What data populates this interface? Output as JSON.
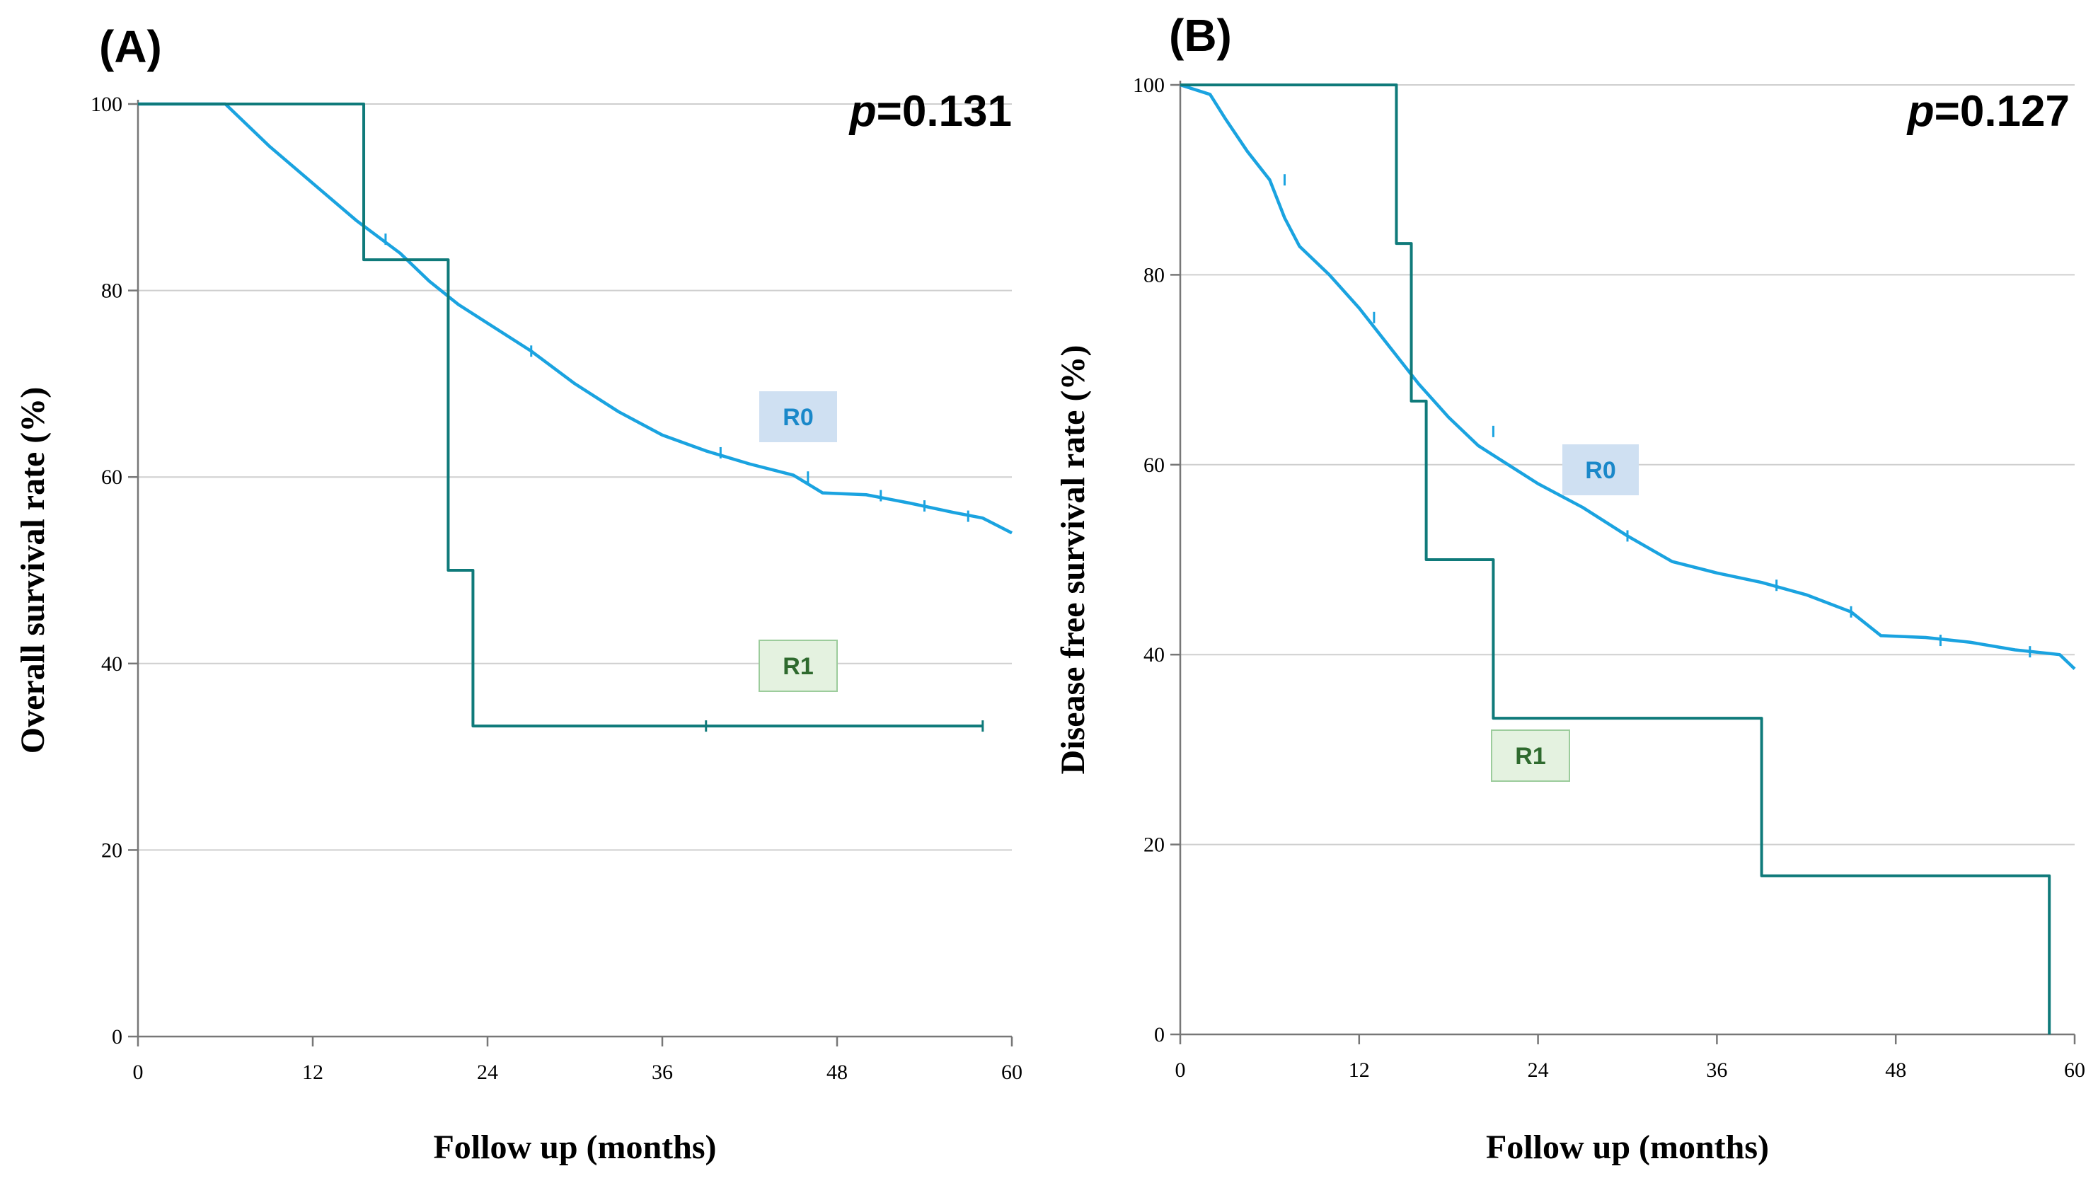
{
  "chart_data": [
    {
      "type": "line",
      "panel_label": "(A)",
      "p_prefix": "p",
      "p_value": "=0.131",
      "xlabel": "Follow up (months)",
      "ylabel": "Overall survival rate (%)",
      "xlim": [
        0,
        60
      ],
      "ylim": [
        0,
        100
      ],
      "x_ticks": [
        "0",
        "12",
        "24",
        "36",
        "48",
        "60"
      ],
      "y_ticks": [
        "0",
        "20",
        "40",
        "60",
        "80",
        "100"
      ],
      "grid": true,
      "series": [
        {
          "name": "R0",
          "color": "#1aa3e0",
          "label_bg": "#cfe0f2",
          "label_fg": "#1a88c9",
          "step": false,
          "x": [
            0,
            6,
            7,
            9,
            12,
            15,
            18,
            20,
            22,
            24,
            27,
            30,
            33,
            36,
            39,
            42,
            45,
            47,
            50,
            53,
            56,
            58,
            60
          ],
          "y": [
            100,
            100,
            98.5,
            95.5,
            91.5,
            87.5,
            84,
            81,
            78.5,
            76.5,
            73.5,
            70,
            67,
            64.5,
            62.8,
            61.4,
            60.2,
            58.3,
            58.1,
            57.2,
            56.2,
            55.6,
            54
          ],
          "censor_x": [
            17,
            27,
            40,
            46,
            51,
            54,
            57
          ],
          "censor_y": [
            85.5,
            73.5,
            62.6,
            60,
            58,
            56.9,
            55.8
          ]
        },
        {
          "name": "R1",
          "color": "#0f7a7a",
          "label_bg": "#e4f2e0",
          "label_fg": "#2e6a2e",
          "step": true,
          "x": [
            0,
            15.5,
            21.3,
            23,
            58
          ],
          "y": [
            100,
            83.3,
            50,
            33.3,
            33.3
          ],
          "censor_x": [
            39,
            58
          ],
          "censor_y": [
            33.3,
            33.3
          ]
        }
      ]
    },
    {
      "type": "line",
      "panel_label": "(B)",
      "p_prefix": "p",
      "p_value": "=0.127",
      "xlabel": "Follow up (months)",
      "ylabel": "Disease free survival rate (%)",
      "xlim": [
        0,
        60
      ],
      "ylim": [
        0,
        100
      ],
      "x_ticks": [
        "0",
        "12",
        "24",
        "36",
        "48",
        "60"
      ],
      "y_ticks": [
        "0",
        "20",
        "40",
        "60",
        "80",
        "100"
      ],
      "grid": true,
      "series": [
        {
          "name": "R0",
          "color": "#1aa3e0",
          "label_bg": "#cfe0f2",
          "label_fg": "#1a88c9",
          "step": false,
          "x": [
            0,
            2,
            3,
            4.5,
            6,
            7,
            8,
            10,
            12,
            14,
            16,
            18,
            20,
            22,
            24,
            27,
            30,
            33,
            36,
            39,
            42,
            45,
            47,
            50,
            53,
            56,
            59,
            60
          ],
          "y": [
            100,
            99,
            96.5,
            93,
            90,
            86,
            83,
            80,
            76.5,
            72.5,
            68.5,
            65,
            62,
            60,
            58,
            55.5,
            52.5,
            49.8,
            48.6,
            47.6,
            46.3,
            44.5,
            42,
            41.8,
            41.3,
            40.5,
            40,
            38.5
          ],
          "censor_x": [
            7,
            13,
            21,
            30,
            40,
            45,
            51,
            57
          ],
          "censor_y": [
            90,
            75.5,
            63.5,
            52.5,
            47.3,
            44.5,
            41.5,
            40.3
          ]
        },
        {
          "name": "R1",
          "color": "#0f7a7a",
          "label_bg": "#e4f2e0",
          "label_fg": "#2e6a2e",
          "step": true,
          "x": [
            0,
            14.5,
            15.5,
            16.5,
            21,
            39,
            58.3
          ],
          "y": [
            100,
            83.3,
            66.7,
            50,
            33.3,
            16.7,
            0
          ],
          "censor_x": [],
          "censor_y": []
        }
      ]
    }
  ]
}
